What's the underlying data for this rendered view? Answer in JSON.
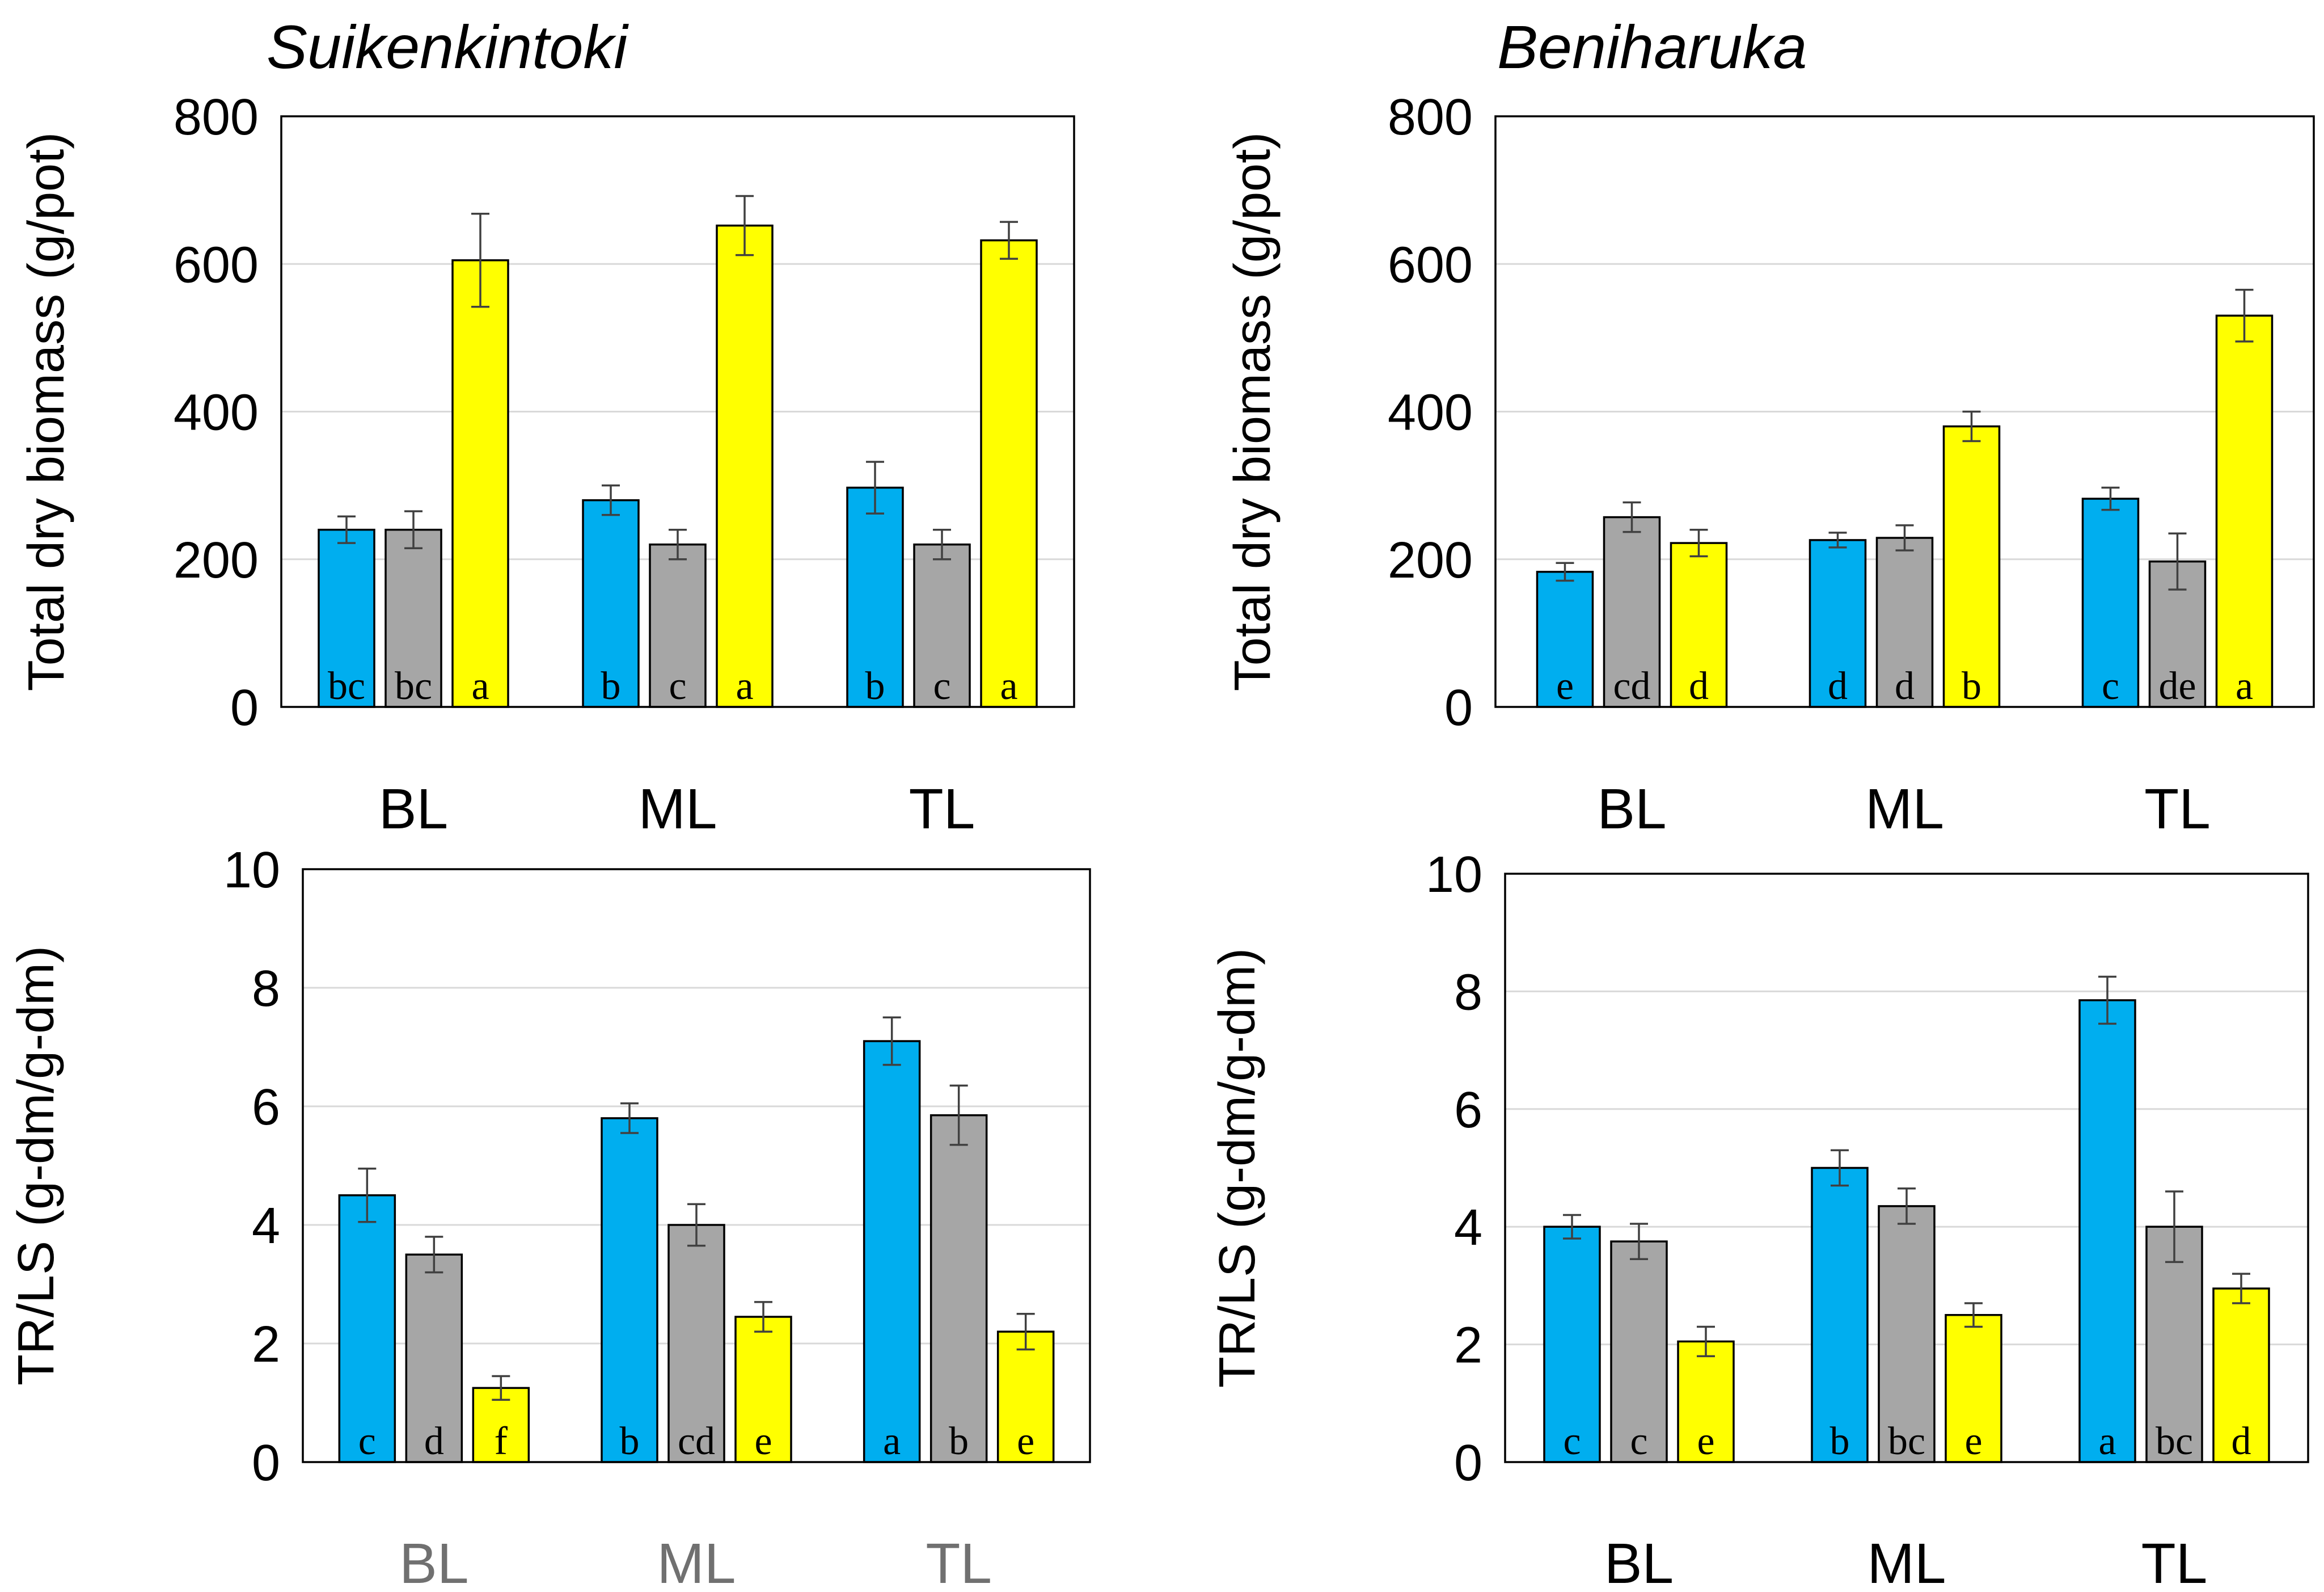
{
  "colors": {
    "series_1": "#00aeef",
    "series_2": "#a6a6a6",
    "series_3": "#ffff00"
  },
  "chart_data": [
    {
      "type": "bar",
      "title": "Suikenkintoki",
      "ylabel": "Total dry biomass (g/pot)",
      "xlabel": "",
      "categories": [
        "BL",
        "ML",
        "TL"
      ],
      "ylim": [
        0,
        800
      ],
      "yticks": [
        "0",
        "200",
        "400",
        "600",
        "800"
      ],
      "grid": true,
      "series": [
        {
          "values": [
            240,
            280,
            297
          ],
          "errors": [
            18,
            20,
            35
          ],
          "letters": [
            "bc",
            "b",
            "b"
          ]
        },
        {
          "values": [
            240,
            220,
            220
          ],
          "errors": [
            25,
            20,
            20
          ],
          "letters": [
            "bc",
            "c",
            "c"
          ]
        },
        {
          "values": [
            605,
            652,
            632
          ],
          "errors": [
            63,
            40,
            25
          ],
          "letters": [
            "a",
            "a",
            "a"
          ]
        }
      ]
    },
    {
      "type": "bar",
      "title": "Beniharuka",
      "ylabel": "Total dry biomass (g/pot)",
      "xlabel": "",
      "categories": [
        "BL",
        "ML",
        "TL"
      ],
      "ylim": [
        0,
        800
      ],
      "yticks": [
        "0",
        "200",
        "400",
        "600",
        "800"
      ],
      "grid": true,
      "series": [
        {
          "values": [
            183,
            226,
            282
          ],
          "errors": [
            12,
            10,
            15
          ],
          "letters": [
            "e",
            "d",
            "c"
          ]
        },
        {
          "values": [
            257,
            229,
            197
          ],
          "errors": [
            20,
            17,
            38
          ],
          "letters": [
            "cd",
            "d",
            "de"
          ]
        },
        {
          "values": [
            222,
            380,
            530
          ],
          "errors": [
            18,
            20,
            35
          ],
          "letters": [
            "d",
            "b",
            "a"
          ]
        }
      ]
    },
    {
      "type": "bar",
      "title": "",
      "ylabel": "TR/LS (g-dm/g-dm)",
      "xlabel": "",
      "categories": [
        "BL",
        "ML",
        "TL"
      ],
      "ylim": [
        0,
        10
      ],
      "yticks": [
        "0",
        "2",
        "4",
        "6",
        "8",
        "10"
      ],
      "grid": true,
      "series": [
        {
          "values": [
            4.5,
            5.8,
            7.1
          ],
          "errors": [
            0.45,
            0.25,
            0.4
          ],
          "letters": [
            "c",
            "b",
            "a"
          ]
        },
        {
          "values": [
            3.5,
            4.0,
            5.85
          ],
          "errors": [
            0.3,
            0.35,
            0.5
          ],
          "letters": [
            "d",
            "cd",
            "b"
          ]
        },
        {
          "values": [
            1.25,
            2.45,
            2.2
          ],
          "errors": [
            0.2,
            0.25,
            0.3
          ],
          "letters": [
            "f",
            "e",
            "e"
          ]
        }
      ]
    },
    {
      "type": "bar",
      "title": "",
      "ylabel": "TR/LS (g-dm/g-dm)",
      "xlabel": "",
      "categories": [
        "BL",
        "ML",
        "TL"
      ],
      "ylim": [
        0,
        10
      ],
      "yticks": [
        "0",
        "2",
        "4",
        "6",
        "8",
        "10"
      ],
      "grid": true,
      "series": [
        {
          "values": [
            4.0,
            5.0,
            7.85
          ],
          "errors": [
            0.2,
            0.3,
            0.4
          ],
          "letters": [
            "c",
            "b",
            "a"
          ]
        },
        {
          "values": [
            3.75,
            4.35,
            4.0
          ],
          "errors": [
            0.3,
            0.3,
            0.6
          ],
          "letters": [
            "c",
            "bc",
            "bc"
          ]
        },
        {
          "values": [
            2.05,
            2.5,
            2.95
          ],
          "errors": [
            0.25,
            0.2,
            0.25
          ],
          "letters": [
            "e",
            "e",
            "d"
          ]
        }
      ]
    }
  ]
}
